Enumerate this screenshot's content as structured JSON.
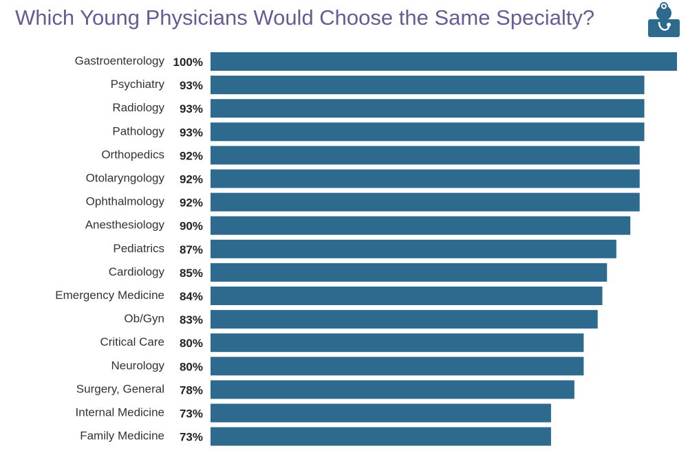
{
  "colors": {
    "title": "#6a5a92",
    "bar": "#2d6a8e",
    "icon": "#2d6a8e"
  },
  "header": {
    "title": "Which Young Physicians Would Choose the Same Specialty?",
    "icon": "doctor-stethoscope-icon"
  },
  "chart_data": {
    "type": "bar",
    "orientation": "horizontal",
    "title": "Which Young Physicians Would Choose the Same Specialty?",
    "categories": [
      "Gastroenterology",
      "Psychiatry",
      "Radiology",
      "Pathology",
      "Orthopedics",
      "Otolaryngology",
      "Ophthalmology",
      "Anesthesiology",
      "Pediatrics",
      "Cardiology",
      "Emergency Medicine",
      "Ob/Gyn",
      "Critical Care",
      "Neurology",
      "Surgery, General",
      "Internal Medicine",
      "Family Medicine"
    ],
    "values": [
      100,
      93,
      93,
      93,
      92,
      92,
      92,
      90,
      87,
      85,
      84,
      83,
      80,
      80,
      78,
      73,
      73
    ],
    "value_labels": [
      "100%",
      "93%",
      "93%",
      "93%",
      "92%",
      "92%",
      "92%",
      "90%",
      "87%",
      "85%",
      "84%",
      "83%",
      "80%",
      "80%",
      "78%",
      "73%",
      "73%"
    ],
    "unit": "%",
    "xlim": [
      0,
      100
    ],
    "grid": false,
    "legend": "none"
  }
}
